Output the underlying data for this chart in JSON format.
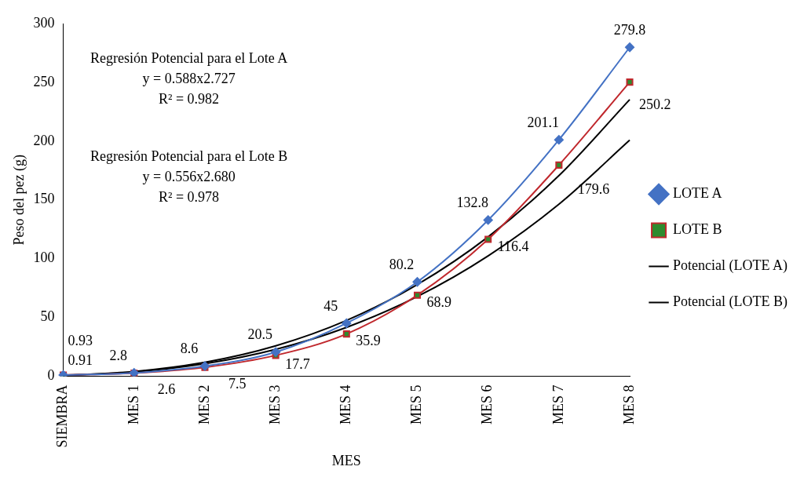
{
  "chart_data": {
    "type": "line",
    "xlabel": "MES",
    "ylabel": "Peso del pez (g)",
    "categories": [
      "SIEMBRA",
      "MES 1",
      "MES 2",
      "MES 3",
      "MES 4",
      "MES 5",
      "MES 6",
      "MES 7",
      "MES 8"
    ],
    "ylim": [
      0,
      300
    ],
    "yticks": [
      0,
      50,
      100,
      150,
      200,
      250,
      300
    ],
    "grid": false,
    "legend": "right",
    "annotations": [
      "Regresión Potencial para el Lote A\ny = 0.588x2.727\nR² = 0.982",
      "Regresión Potencial para el Lote B\ny = 0.556x2.680\nR² = 0.978"
    ],
    "series": [
      {
        "name": "LOTE A",
        "color": "#4472c4",
        "marker": "diamond",
        "values": [
          0.93,
          2.8,
          8.6,
          20.5,
          45,
          80.2,
          132.8,
          201.1,
          279.8
        ],
        "value_labels": [
          "0.93",
          "2.8",
          "8.6",
          "20.5",
          "45",
          "80.2",
          "132.8",
          "201.1",
          "279.8"
        ]
      },
      {
        "name": "LOTE B",
        "color": "#c0282d",
        "marker": "square",
        "values": [
          0.91,
          2.6,
          7.5,
          17.7,
          35.9,
          68.9,
          116.4,
          179.6,
          250.2
        ],
        "value_labels": [
          "0.91",
          "2.6",
          "7.5",
          "17.7",
          "35.9",
          "68.9",
          "116.4",
          "179.6",
          "250.2"
        ]
      },
      {
        "name": "Potencial (LOTE A)",
        "color": "#000000",
        "marker": "none",
        "values": [
          0.6,
          3.9,
          11.8,
          25.8,
          47.4,
          77.9,
          118.5,
          170.6,
          235.3
        ]
      },
      {
        "name": "Potencial (LOTE B)",
        "color": "#000000",
        "marker": "none",
        "values": [
          0.6,
          3.6,
          10.6,
          22.8,
          41.5,
          67.7,
          102.3,
          146.3,
          200.8
        ]
      }
    ]
  }
}
